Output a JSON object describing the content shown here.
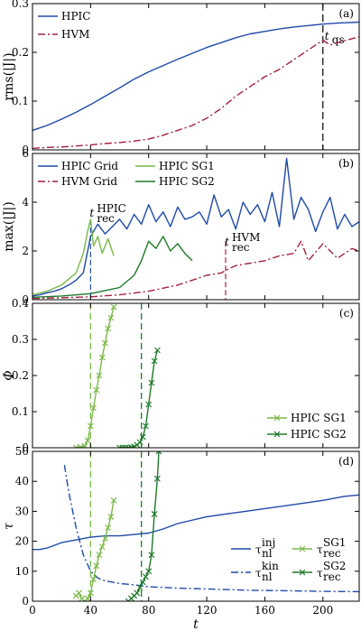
{
  "colors": {
    "hpic": "#1f4aa8",
    "hvm": "#a3213b",
    "sg1": "#7bb84a",
    "sg2": "#1f7a2a"
  },
  "x_axis": {
    "label": "t",
    "range": [
      0,
      225
    ],
    "ticks": [
      "0",
      "40",
      "80",
      "120",
      "160",
      "200"
    ]
  },
  "chart_data": [
    {
      "type": "line",
      "panel_label": "(a)",
      "ylabel": "rms(|J|)",
      "ylim": [
        0,
        0.3
      ],
      "yticks": [
        "0",
        "0.1",
        "0.2",
        "0.3"
      ],
      "legend": "top-left",
      "annotations": [
        {
          "text": "t",
          "sub": "qs",
          "x": 200
        }
      ],
      "series": [
        {
          "name": "HPIC",
          "color": "hpic",
          "style": "solid",
          "x": [
            0,
            10,
            20,
            30,
            40,
            50,
            60,
            70,
            80,
            90,
            100,
            110,
            120,
            130,
            140,
            150,
            160,
            170,
            180,
            190,
            200,
            210,
            225
          ],
          "y": [
            0.04,
            0.05,
            0.063,
            0.077,
            0.093,
            0.11,
            0.127,
            0.145,
            0.16,
            0.173,
            0.186,
            0.198,
            0.21,
            0.22,
            0.23,
            0.238,
            0.243,
            0.248,
            0.252,
            0.255,
            0.258,
            0.26,
            0.262
          ]
        },
        {
          "name": "HVM",
          "color": "hvm",
          "style": "dashdot",
          "x": [
            0,
            10,
            20,
            30,
            40,
            50,
            60,
            70,
            80,
            90,
            100,
            110,
            120,
            130,
            140,
            150,
            160,
            170,
            180,
            190,
            200,
            205,
            210,
            225
          ],
          "y": [
            0.003,
            0.005,
            0.006,
            0.008,
            0.01,
            0.013,
            0.015,
            0.018,
            0.022,
            0.03,
            0.04,
            0.05,
            0.065,
            0.085,
            0.11,
            0.13,
            0.15,
            0.165,
            0.185,
            0.205,
            0.225,
            0.215,
            0.22,
            0.232
          ]
        }
      ]
    },
    {
      "type": "line",
      "panel_label": "(b)",
      "ylabel": "max(|J|)",
      "ylim": [
        0,
        6
      ],
      "yticks": [
        "0",
        "2",
        "4",
        "6"
      ],
      "legend": "top",
      "annotations": [
        {
          "text": "t",
          "sub": "rec",
          "sup": "HPIC",
          "x": 40,
          "color": "hpic"
        },
        {
          "text": "t",
          "sub": "rec",
          "sup": "HVM",
          "x": 133,
          "color": "hvm"
        }
      ],
      "series": [
        {
          "name": "HPIC Grid",
          "color": "hpic",
          "style": "solid",
          "x": [
            0,
            5,
            10,
            15,
            20,
            25,
            30,
            35,
            40,
            45,
            50,
            55,
            60,
            65,
            70,
            75,
            80,
            85,
            90,
            95,
            100,
            105,
            110,
            115,
            120,
            125,
            130,
            135,
            140,
            145,
            150,
            155,
            160,
            165,
            170,
            175,
            180,
            185,
            190,
            195,
            200,
            205,
            210,
            215,
            220,
            225
          ],
          "y": [
            0.15,
            0.2,
            0.28,
            0.35,
            0.45,
            0.6,
            0.8,
            1.1,
            2.6,
            3.1,
            2.7,
            3.0,
            3.3,
            2.9,
            3.5,
            3.1,
            3.9,
            3.2,
            3.6,
            3.0,
            3.8,
            3.3,
            3.4,
            3.6,
            3.1,
            4.3,
            3.4,
            3.7,
            2.9,
            4.0,
            3.5,
            3.9,
            3.2,
            4.4,
            3.0,
            5.8,
            3.3,
            4.2,
            3.7,
            2.8,
            3.6,
            4.2,
            2.9,
            3.5,
            3.0,
            3.2
          ]
        },
        {
          "name": "HVM Grid",
          "color": "hvm",
          "style": "dashdot",
          "x": [
            0,
            20,
            40,
            60,
            80,
            100,
            110,
            120,
            130,
            133,
            140,
            150,
            160,
            170,
            180,
            185,
            190,
            200,
            210,
            220,
            225
          ],
          "y": [
            0.05,
            0.08,
            0.12,
            0.2,
            0.35,
            0.6,
            0.8,
            1.0,
            1.1,
            1.2,
            1.4,
            1.5,
            1.6,
            1.8,
            1.9,
            2.4,
            1.6,
            2.3,
            1.7,
            2.1,
            2.0
          ]
        },
        {
          "name": "HPIC SG1",
          "color": "sg1",
          "style": "solid",
          "x": [
            0,
            10,
            20,
            30,
            35,
            38,
            40,
            42,
            45,
            48,
            52,
            56
          ],
          "y": [
            0.2,
            0.35,
            0.6,
            1.1,
            1.9,
            2.8,
            3.3,
            2.2,
            2.6,
            1.9,
            2.5,
            1.8
          ]
        },
        {
          "name": "HPIC SG2",
          "color": "sg2",
          "style": "solid",
          "x": [
            0,
            20,
            40,
            60,
            70,
            75,
            80,
            85,
            90,
            95,
            100,
            105,
            110
          ],
          "y": [
            0.1,
            0.15,
            0.25,
            0.5,
            1.0,
            1.6,
            2.4,
            2.1,
            2.6,
            2.0,
            2.3,
            1.9,
            1.6
          ]
        }
      ]
    },
    {
      "type": "line",
      "panel_label": "(c)",
      "ylabel": "Φ",
      "ylim": [
        0,
        0.4
      ],
      "yticks": [
        "0",
        "0.1",
        "0.2",
        "0.3",
        "0.4"
      ],
      "legend": "bottom-right",
      "vlines": [
        {
          "x": 40,
          "color": "sg1"
        },
        {
          "x": 75,
          "color": "sg2"
        }
      ],
      "series": [
        {
          "name": "HPIC SG1",
          "color": "sg1",
          "style": "solid-x",
          "x": [
            30,
            33,
            36,
            38,
            40,
            42,
            44,
            46,
            48,
            50,
            52,
            54,
            56
          ],
          "y": [
            0,
            0.002,
            0.005,
            0.02,
            0.06,
            0.11,
            0.16,
            0.2,
            0.25,
            0.29,
            0.33,
            0.36,
            0.39
          ]
        },
        {
          "name": "HPIC SG2",
          "color": "sg2",
          "style": "solid-x",
          "x": [
            60,
            62,
            64,
            66,
            68,
            70,
            72,
            74,
            76,
            78,
            80,
            82,
            84,
            86
          ],
          "y": [
            0,
            0,
            0,
            0,
            0.001,
            0.003,
            0.008,
            0.015,
            0.03,
            0.06,
            0.12,
            0.18,
            0.24,
            0.27
          ]
        }
      ]
    },
    {
      "type": "line",
      "panel_label": "(d)",
      "ylabel": "τ",
      "ylim": [
        0,
        55
      ],
      "yticks": [
        "0",
        "10",
        "20",
        "30",
        "40",
        "50"
      ],
      "legend": "bottom-right",
      "vlines": [
        {
          "x": 40,
          "color": "sg1"
        },
        {
          "x": 75,
          "color": "sg2"
        }
      ],
      "series": [
        {
          "name": "τ_nl^inj",
          "color": "hpic",
          "style": "solid",
          "x": [
            0,
            5,
            10,
            20,
            30,
            40,
            50,
            60,
            70,
            80,
            90,
            100,
            120,
            140,
            160,
            180,
            200,
            215,
            225
          ],
          "y": [
            19,
            19,
            19.5,
            21.5,
            22.5,
            23.5,
            24,
            24,
            24.5,
            25,
            26.5,
            28.5,
            31,
            32.5,
            34,
            35.5,
            37,
            38.5,
            39
          ]
        },
        {
          "name": "τ_nl^kin",
          "color": "hpic",
          "style": "dashdot",
          "x": [
            22,
            25,
            30,
            35,
            40,
            45,
            50,
            60,
            70,
            80,
            100,
            120,
            150,
            180,
            200,
            225
          ],
          "y": [
            50,
            40,
            27,
            17,
            11,
            8.5,
            7.5,
            6.5,
            6,
            5.3,
            4.8,
            4.5,
            4,
            3.8,
            3.6,
            3.5
          ]
        },
        {
          "name": "τ_rec^SG1",
          "color": "sg1",
          "style": "solid-x",
          "x": [
            30,
            32,
            34,
            36,
            38,
            40,
            42,
            44,
            46,
            48,
            50,
            52,
            54,
            56
          ],
          "y": [
            2,
            3,
            1,
            0,
            1,
            3,
            8,
            13,
            17,
            20,
            23,
            27,
            31,
            37
          ]
        },
        {
          "name": "τ_rec^SG2",
          "color": "sg2",
          "style": "solid-x",
          "x": [
            66,
            68,
            70,
            72,
            74,
            76,
            78,
            80,
            82,
            84,
            86,
            87
          ],
          "y": [
            0,
            1,
            2,
            3,
            5,
            7,
            9,
            11,
            17,
            32,
            45,
            55
          ]
        }
      ]
    }
  ],
  "legend_labels": {
    "a": [
      "HPIC",
      "HVM"
    ],
    "b": [
      "HPIC Grid",
      "HPIC SG1",
      "HVM Grid",
      "HPIC SG2"
    ],
    "c": [
      "HPIC SG1",
      "HPIC SG2"
    ],
    "d": [
      {
        "base": "τ",
        "sup": "inj",
        "sub": "nl"
      },
      {
        "base": "τ",
        "sup": "SG1",
        "sub": "rec"
      },
      {
        "base": "τ",
        "sup": "kin",
        "sub": "nl"
      },
      {
        "base": "τ",
        "sup": "SG2",
        "sub": "rec"
      }
    ]
  }
}
